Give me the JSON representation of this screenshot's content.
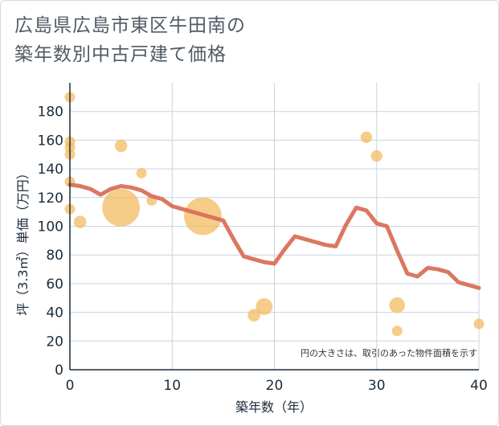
{
  "title": {
    "line1": "広島県広島市東区牛田南の",
    "line2": "築年数別中古戸建て価格"
  },
  "chart_data": {
    "type": "scatter+line",
    "xlabel": "築年数（年）",
    "ylabel": "坪（3.3㎡）単価（万円）",
    "xlim": [
      0,
      40
    ],
    "ylim": [
      0,
      200
    ],
    "xticks": [
      0,
      10,
      20,
      30,
      40
    ],
    "yticks": [
      0,
      20,
      40,
      60,
      80,
      100,
      120,
      140,
      160,
      180
    ],
    "grid": true,
    "note": "円の大きさは、取引のあった物件面積を示す",
    "colors": {
      "bubble": "#f2b95c",
      "line": "#d9705a",
      "grid": "#c8d4e0",
      "axis": "#1a2b3a"
    },
    "scatter": [
      {
        "x": 0,
        "y": 190,
        "size": 1
      },
      {
        "x": 0,
        "y": 159,
        "size": 1
      },
      {
        "x": 0,
        "y": 155,
        "size": 1
      },
      {
        "x": 0,
        "y": 150,
        "size": 1
      },
      {
        "x": 0,
        "y": 131,
        "size": 1
      },
      {
        "x": 0,
        "y": 112,
        "size": 1
      },
      {
        "x": 1,
        "y": 103,
        "size": 1.2
      },
      {
        "x": 5,
        "y": 156,
        "size": 1.2
      },
      {
        "x": 5,
        "y": 113,
        "size": 3.6
      },
      {
        "x": 7,
        "y": 137,
        "size": 1
      },
      {
        "x": 8,
        "y": 118,
        "size": 1
      },
      {
        "x": 13,
        "y": 107,
        "size": 3.6
      },
      {
        "x": 18,
        "y": 38,
        "size": 1.2
      },
      {
        "x": 19,
        "y": 44,
        "size": 1.6
      },
      {
        "x": 29,
        "y": 162,
        "size": 1.1
      },
      {
        "x": 30,
        "y": 149,
        "size": 1.1
      },
      {
        "x": 32,
        "y": 45,
        "size": 1.5
      },
      {
        "x": 32,
        "y": 27,
        "size": 1
      },
      {
        "x": 40,
        "y": 32,
        "size": 1
      }
    ],
    "line": {
      "x": [
        0,
        1,
        2,
        3,
        4,
        5,
        6,
        7,
        8,
        9,
        10,
        11,
        12,
        13,
        14,
        15,
        16,
        17,
        18,
        19,
        20,
        21,
        22,
        23,
        24,
        25,
        26,
        27,
        28,
        29,
        30,
        31,
        32,
        33,
        34,
        35,
        36,
        37,
        38,
        39,
        40
      ],
      "y": [
        129,
        128,
        126,
        122,
        126,
        128,
        127,
        125,
        121,
        119,
        114,
        112,
        110,
        108,
        106,
        104,
        91,
        79,
        77,
        75,
        74,
        84,
        93,
        91,
        89,
        87,
        86,
        101,
        113,
        111,
        102,
        100,
        83,
        67,
        65,
        71,
        70,
        68,
        61,
        59,
        57
      ]
    }
  }
}
